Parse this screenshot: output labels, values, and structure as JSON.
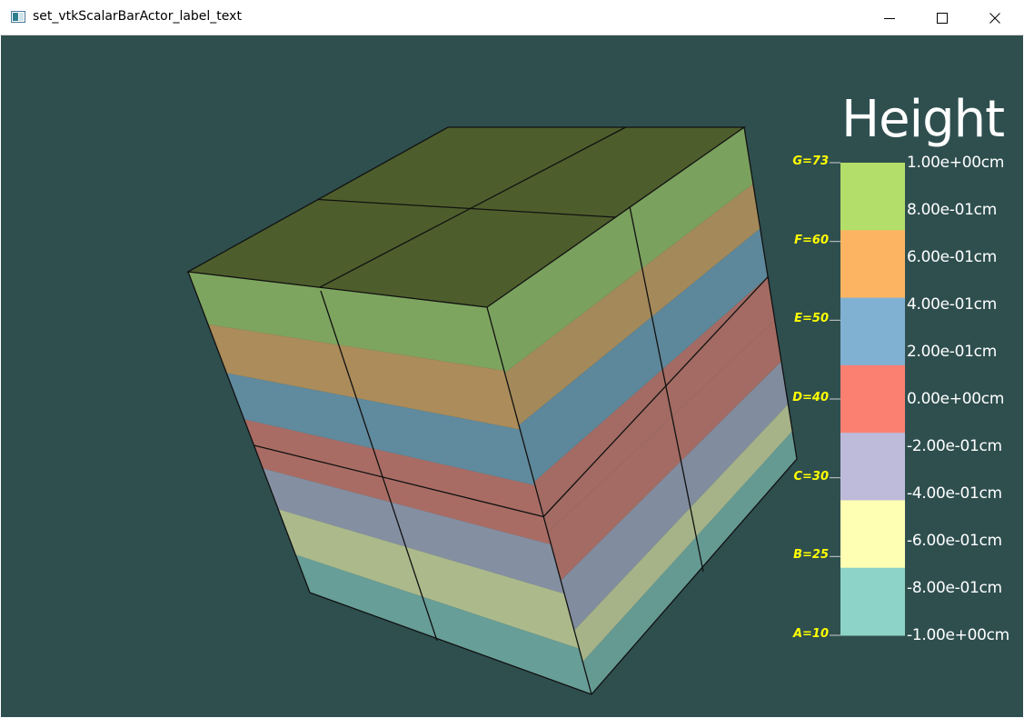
{
  "window": {
    "title": "set_vtkScalarBarActor_label_text",
    "controls": {
      "minimize": "minimize",
      "maximize": "maximize",
      "close": "close"
    }
  },
  "scalar_bar": {
    "title": "Height",
    "labels": [
      "1.00e+00cm",
      "8.00e-01cm",
      "6.00e-01cm",
      "4.00e-01cm",
      "2.00e-01cm",
      "0.00e+00cm",
      "-2.00e-01cm",
      "-4.00e-01cm",
      "-6.00e-01cm",
      "-8.00e-01cm",
      "-1.00e+00cm"
    ],
    "annotations": [
      "G=73",
      "F=60",
      "E=50",
      "D=40",
      "C=30",
      "B=25",
      "A=10"
    ],
    "colors": [
      "#b3de69",
      "#fdb462",
      "#80b1d3",
      "#fb8072",
      "#bebada",
      "#ffffb3",
      "#8dd3c7"
    ],
    "annotation_color": "#ffff00"
  },
  "scene": {
    "background": "#2f4f4f",
    "top_color": "#4d5e2c",
    "edge_color": "#111111"
  }
}
